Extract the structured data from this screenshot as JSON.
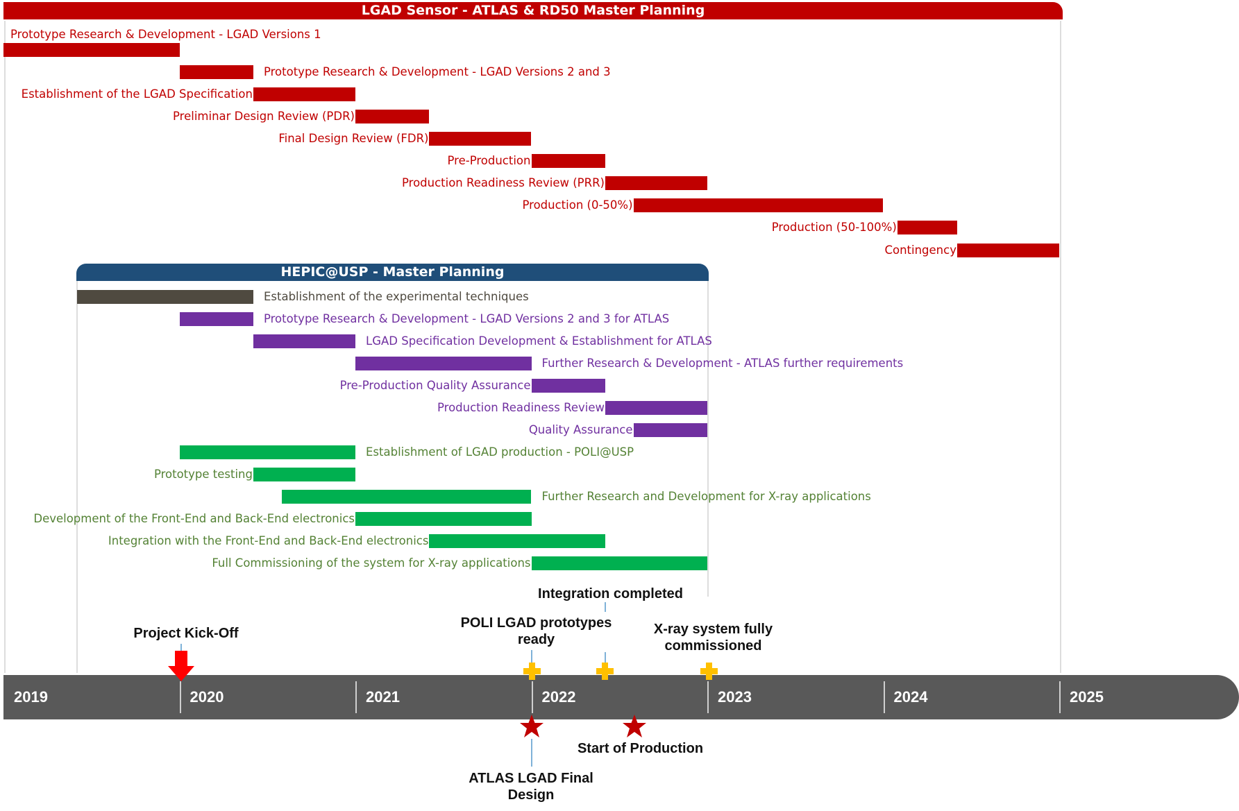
{
  "colors": {
    "atlas_header": "#c00000",
    "hepic_header": "#1f4e79",
    "red": "#c00000",
    "gray": "#4f4a40",
    "purple": "#7030a0",
    "green": "#00b050",
    "green_text": "#548235",
    "axis": "#595959",
    "milestone_diamond": "#ffc000",
    "milestone_star": "#c00000",
    "kickoff_arrow": "#ff0000"
  },
  "timeline": {
    "years": [
      "2019",
      "2020",
      "2021",
      "2022",
      "2023",
      "2024",
      "2025"
    ],
    "start_year": 2019
  },
  "atlas_plan": {
    "title": "LGAD Sensor - ATLAS & RD50 Master Planning",
    "tasks": [
      {
        "label": "Prototype Research & Development - LGAD Versions 1",
        "start": 2019.0,
        "end": 2020.0,
        "color": "red",
        "label_pos": "above-left"
      },
      {
        "label": "Prototype Research & Development - LGAD Versions 2 and 3",
        "start": 2020.0,
        "end": 2020.42,
        "color": "red",
        "label_pos": "right"
      },
      {
        "label": "Establishment of the LGAD Specification",
        "start": 2020.42,
        "end": 2021.0,
        "color": "red",
        "label_pos": "left"
      },
      {
        "label": "Preliminar Design Review (PDR)",
        "start": 2021.0,
        "end": 2021.42,
        "color": "red",
        "label_pos": "left"
      },
      {
        "label": "Final Design Review (FDR)",
        "start": 2021.42,
        "end": 2022.0,
        "color": "red",
        "label_pos": "left"
      },
      {
        "label": "Pre-Production",
        "start": 2022.0,
        "end": 2022.42,
        "color": "red",
        "label_pos": "left"
      },
      {
        "label": "Production Readiness Review (PRR)",
        "start": 2022.42,
        "end": 2023.0,
        "color": "red",
        "label_pos": "left"
      },
      {
        "label": "Production (0-50%)",
        "start": 2022.58,
        "end": 2024.0,
        "color": "red",
        "label_pos": "left"
      },
      {
        "label": "Production (50-100%)",
        "start": 2024.08,
        "end": 2024.42,
        "color": "red",
        "label_pos": "left"
      },
      {
        "label": "Contingency",
        "start": 2024.42,
        "end": 2025.0,
        "color": "red",
        "label_pos": "left"
      }
    ]
  },
  "hepic_plan": {
    "title": "HEPIC@USP - Master Planning",
    "tasks": [
      {
        "label": "Establishment of the experimental techniques",
        "start": 2019.42,
        "end": 2020.42,
        "color": "gray",
        "label_pos": "right"
      },
      {
        "label": "Prototype Research & Development - LGAD Versions 2 and 3 for ATLAS",
        "start": 2020.0,
        "end": 2020.42,
        "color": "purple",
        "label_pos": "right"
      },
      {
        "label": "LGAD Specification Development & Establishment for ATLAS",
        "start": 2020.42,
        "end": 2021.0,
        "color": "purple",
        "label_pos": "right"
      },
      {
        "label": "Further Research & Development - ATLAS further requirements",
        "start": 2021.0,
        "end": 2022.0,
        "color": "purple",
        "label_pos": "right"
      },
      {
        "label": "Pre-Production Quality Assurance",
        "start": 2022.0,
        "end": 2022.42,
        "color": "purple",
        "label_pos": "left"
      },
      {
        "label": "Production Readiness Review",
        "start": 2022.42,
        "end": 2023.0,
        "color": "purple",
        "label_pos": "left"
      },
      {
        "label": "Quality Assurance",
        "start": 2022.58,
        "end": 2023.0,
        "color": "purple",
        "label_pos": "left"
      },
      {
        "label": "Establishment of LGAD production - POLI@USP",
        "start": 2020.0,
        "end": 2021.0,
        "color": "green",
        "label_pos": "right"
      },
      {
        "label": "Prototype testing",
        "start": 2020.42,
        "end": 2021.0,
        "color": "green",
        "label_pos": "left"
      },
      {
        "label": "Further Research and Development for X-ray applications",
        "start": 2020.58,
        "end": 2022.0,
        "color": "green",
        "label_pos": "right"
      },
      {
        "label": "Development of the Front-End and Back-End electronics",
        "start": 2021.0,
        "end": 2022.0,
        "color": "green",
        "label_pos": "left"
      },
      {
        "label": "Integration with the Front-End and Back-End electronics",
        "start": 2021.42,
        "end": 2022.42,
        "color": "green",
        "label_pos": "left"
      },
      {
        "label": "Full Commissioning of the system for X-ray applications",
        "start": 2022.0,
        "end": 2023.0,
        "color": "green",
        "label_pos": "left"
      }
    ]
  },
  "milestones": {
    "kickoff": {
      "label": "Project Kick-Off",
      "date": 2020.0
    },
    "poli_prototypes": {
      "label_line1": "POLI LGAD prototypes",
      "label_line2": "ready",
      "date": 2022.0
    },
    "integration": {
      "label": "Integration completed",
      "date": 2022.42
    },
    "xray": {
      "label_line1": "X-ray system fully",
      "label_line2": "commissioned",
      "date": 2023.0
    },
    "atlas_final": {
      "label_line1": "ATLAS LGAD Final",
      "label_line2": "Design",
      "date": 2022.0
    },
    "production_start": {
      "label": "Start of Production",
      "date": 2022.58
    }
  }
}
